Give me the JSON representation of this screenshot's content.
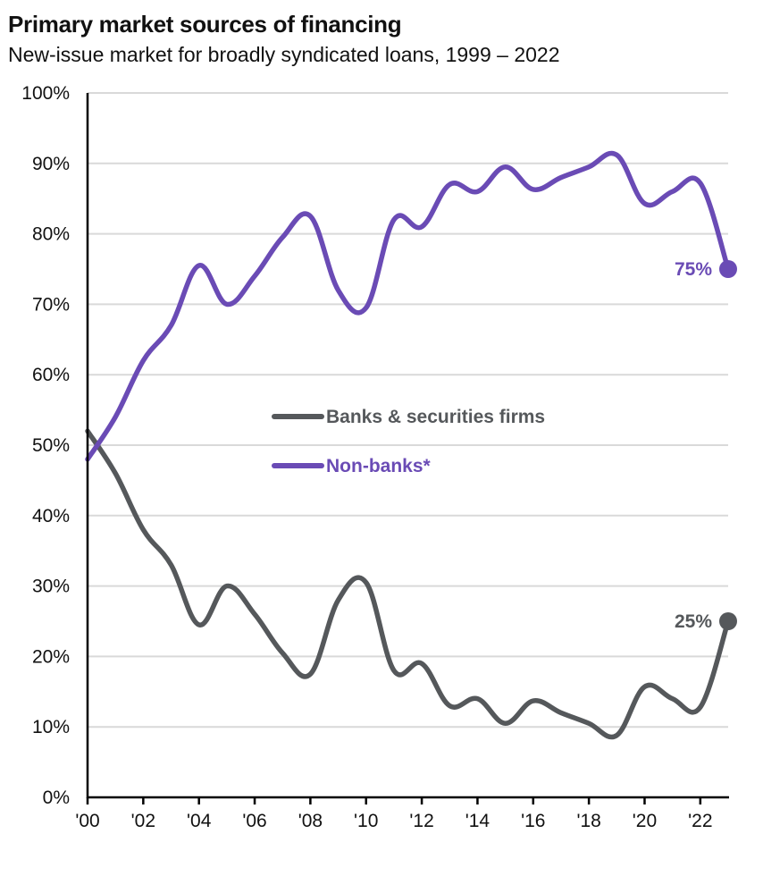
{
  "chart_data": {
    "type": "line",
    "title": "Primary market sources of financing",
    "subtitle": "New-issue market for broadly syndicated loans, 1999 – 2022",
    "xlabel": "",
    "ylabel": "",
    "x": [
      1999,
      2000,
      2001,
      2002,
      2003,
      2004,
      2005,
      2006,
      2007,
      2008,
      2009,
      2010,
      2011,
      2012,
      2013,
      2014,
      2015,
      2016,
      2017,
      2018,
      2019,
      2020,
      2021,
      2022
    ],
    "x_ticks": [
      "'00",
      "'02",
      "'04",
      "'06",
      "'08",
      "'10",
      "'12",
      "'14",
      "'16",
      "'18",
      "'20",
      "'22"
    ],
    "y_ticks": [
      "0%",
      "10%",
      "20%",
      "30%",
      "40%",
      "50%",
      "60%",
      "70%",
      "80%",
      "90%",
      "100%"
    ],
    "ylim": [
      0,
      100
    ],
    "grid": true,
    "legend_position": "center",
    "series": [
      {
        "name": "Banks & securities firms",
        "color": "#55585b",
        "values": [
          52,
          46,
          38,
          33,
          24.5,
          30,
          26,
          20.5,
          17.5,
          28,
          30.5,
          18,
          19,
          13,
          14,
          10.5,
          13.7,
          12,
          10.5,
          8.8,
          15.7,
          14,
          12.8,
          25
        ],
        "end_label": "25%"
      },
      {
        "name": "Non-banks*",
        "color": "#6a4bb5",
        "values": [
          48,
          54,
          62,
          67,
          75.5,
          70,
          74,
          79.5,
          82.5,
          72,
          69.5,
          82,
          81,
          87,
          86,
          89.5,
          86.3,
          88,
          89.5,
          91.2,
          84.3,
          86,
          87.2,
          75
        ],
        "end_label": "75%"
      }
    ]
  }
}
